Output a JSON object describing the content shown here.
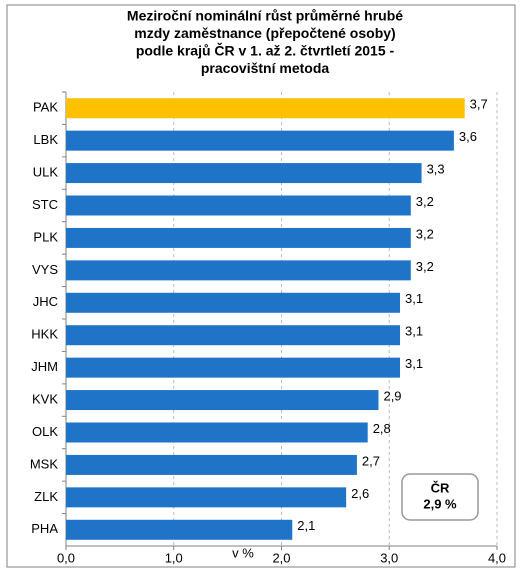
{
  "chart_data": {
    "type": "barh",
    "title": [
      "Meziroční nominální růst průměrné hrubé",
      "mzdy zaměstnance (přepočtené  osoby)",
      "podle krajů ČR v 1. až 2. čtvrtletí  2015 -",
      "pracovištní metoda"
    ],
    "categories": [
      "PAK",
      "LBK",
      "ULK",
      "STC",
      "PLK",
      "VYS",
      "JHC",
      "HKK",
      "JHM",
      "KVK",
      "OLK",
      "MSK",
      "ZLK",
      "PHA"
    ],
    "values": [
      3.7,
      3.6,
      3.3,
      3.2,
      3.2,
      3.2,
      3.1,
      3.1,
      3.1,
      2.9,
      2.8,
      2.7,
      2.6,
      2.1
    ],
    "value_labels": [
      "3,7",
      "3,6",
      "3,3",
      "3,2",
      "3,2",
      "3,2",
      "3,1",
      "3,1",
      "3,1",
      "2,9",
      "2,8",
      "2,7",
      "2,6",
      "2,1"
    ],
    "colors": [
      "#ffc000",
      "#1f74c8",
      "#1f74c8",
      "#1f74c8",
      "#1f74c8",
      "#1f74c8",
      "#1f74c8",
      "#1f74c8",
      "#1f74c8",
      "#1f74c8",
      "#1f74c8",
      "#1f74c8",
      "#1f74c8",
      "#1f74c8"
    ],
    "xlim": [
      0,
      4
    ],
    "xticks": [
      {
        "value": 0,
        "label": "0,0"
      },
      {
        "value": 1,
        "label": "1,0"
      },
      {
        "value": 2,
        "label": "2,0"
      },
      {
        "value": 3,
        "label": "3,0"
      },
      {
        "value": 4,
        "label": "4,0"
      }
    ],
    "xlabel": "v %",
    "grid": true,
    "annotation": [
      "ČR",
      "2,9 %"
    ]
  }
}
